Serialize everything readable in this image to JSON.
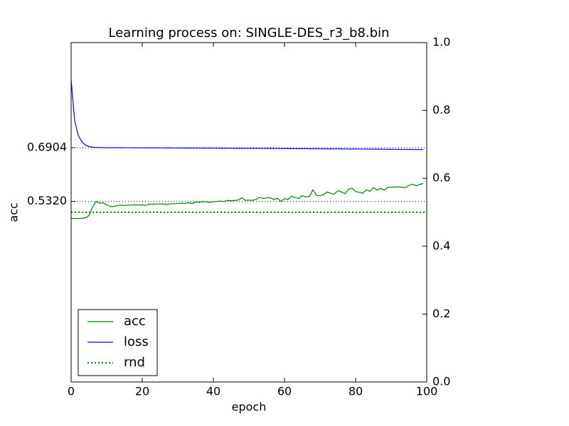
{
  "chart_data": {
    "type": "line",
    "title": "Learning process on: SINGLE-DES_r3_b8.bin",
    "x_label": "epoch",
    "y_label": "acc",
    "xlim": [
      0,
      100
    ],
    "xticks": [
      0,
      20,
      40,
      60,
      80,
      100
    ],
    "ylim": [
      0,
      1
    ],
    "yticks": [
      0.6904,
      {
        "value": 0.532,
        "label": "0.5320"
      }
    ],
    "y2lim": [
      0,
      1
    ],
    "y2ticks": [
      {
        "value": 0,
        "label": "0.0"
      },
      0.2,
      0.4,
      0.6,
      0.8,
      {
        "value": 1,
        "label": "1.0"
      }
    ],
    "grid": true,
    "legend": "lower left",
    "x": [
      0,
      1,
      2,
      3,
      4,
      5,
      6,
      7,
      8,
      9,
      10,
      11,
      12,
      13,
      14,
      15,
      16,
      17,
      18,
      19,
      20,
      21,
      22,
      23,
      24,
      25,
      26,
      27,
      28,
      29,
      30,
      31,
      32,
      33,
      34,
      35,
      36,
      37,
      38,
      39,
      40,
      41,
      42,
      43,
      44,
      45,
      46,
      47,
      48,
      49,
      50,
      51,
      52,
      53,
      54,
      55,
      56,
      57,
      58,
      59,
      60,
      61,
      62,
      63,
      64,
      65,
      66,
      67,
      68,
      69,
      70,
      71,
      72,
      73,
      74,
      75,
      76,
      77,
      78,
      79,
      80,
      81,
      82,
      83,
      84,
      85,
      86,
      87,
      88,
      89,
      90,
      91,
      92,
      93,
      94,
      95,
      96,
      97,
      98,
      99
    ],
    "series": [
      {
        "name": "acc",
        "color": "#008000",
        "style": "solid",
        "values": [
          0.482,
          0.482,
          0.482,
          0.482,
          0.484,
          0.49,
          0.515,
          0.532,
          0.527,
          0.528,
          0.522,
          0.517,
          0.517,
          0.52,
          0.521,
          0.52,
          0.521,
          0.521,
          0.522,
          0.521,
          0.522,
          0.52,
          0.524,
          0.524,
          0.524,
          0.525,
          0.524,
          0.523,
          0.525,
          0.525,
          0.526,
          0.527,
          0.526,
          0.528,
          0.526,
          0.53,
          0.529,
          0.531,
          0.531,
          0.529,
          0.531,
          0.532,
          0.533,
          0.532,
          0.535,
          0.534,
          0.535,
          0.536,
          0.543,
          0.535,
          0.536,
          0.535,
          0.538,
          0.544,
          0.541,
          0.542,
          0.543,
          0.538,
          0.541,
          0.532,
          0.54,
          0.538,
          0.548,
          0.543,
          0.541,
          0.549,
          0.545,
          0.547,
          0.566,
          0.55,
          0.549,
          0.552,
          0.56,
          0.556,
          0.553,
          0.564,
          0.56,
          0.555,
          0.568,
          0.571,
          0.561,
          0.559,
          0.556,
          0.566,
          0.562,
          0.573,
          0.565,
          0.571,
          0.565,
          0.573,
          0.574,
          0.574,
          0.575,
          0.574,
          0.573,
          0.579,
          0.583,
          0.578,
          0.582,
          0.585
        ]
      },
      {
        "name": "loss",
        "color": "#0000ff",
        "style": "solid",
        "axis": "y2",
        "values": [
          0.89,
          0.77,
          0.727,
          0.708,
          0.698,
          0.694,
          0.692,
          0.6912,
          0.6908,
          0.6906,
          0.6905,
          0.6904,
          0.6904,
          0.6903,
          0.6903,
          0.6902,
          0.6902,
          0.6901,
          0.6901,
          0.69,
          0.69,
          0.6899,
          0.6899,
          0.6898,
          0.6898,
          0.6897,
          0.6897,
          0.6896,
          0.6896,
          0.6895,
          0.6895,
          0.6894,
          0.6894,
          0.6893,
          0.6893,
          0.6892,
          0.6892,
          0.6891,
          0.6891,
          0.689,
          0.6889,
          0.6889,
          0.6888,
          0.6888,
          0.6887,
          0.6887,
          0.6886,
          0.6886,
          0.6885,
          0.6885,
          0.6884,
          0.6883,
          0.6883,
          0.6882,
          0.6882,
          0.6881,
          0.688,
          0.688,
          0.6879,
          0.6879,
          0.6878,
          0.6877,
          0.6877,
          0.6876,
          0.6875,
          0.6875,
          0.6874,
          0.6873,
          0.6873,
          0.6872,
          0.6871,
          0.6871,
          0.687,
          0.6869,
          0.6868,
          0.6868,
          0.6867,
          0.6866,
          0.6866,
          0.6865,
          0.6864,
          0.6863,
          0.6863,
          0.6862,
          0.6861,
          0.686,
          0.6859,
          0.6859,
          0.6858,
          0.6857,
          0.6856,
          0.6855,
          0.6854,
          0.6853,
          0.6852,
          0.6852,
          0.6851,
          0.685,
          0.6849,
          0.6848
        ]
      },
      {
        "name": "rnd",
        "color": "#008000",
        "style": "dotted",
        "x": [
          0,
          100
        ],
        "values": [
          0.5,
          0.5
        ]
      }
    ]
  }
}
